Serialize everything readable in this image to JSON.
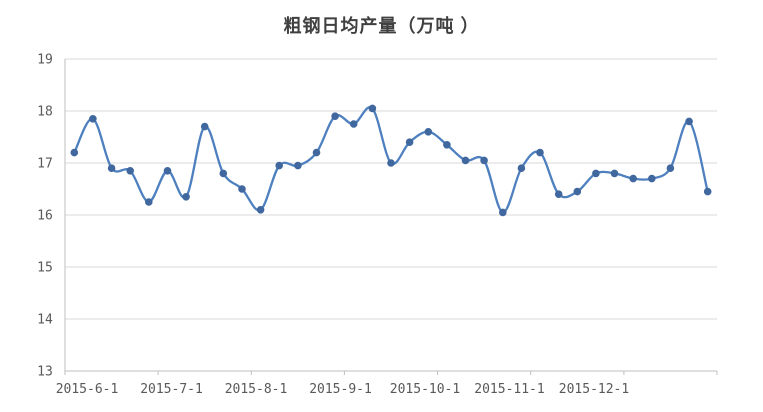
{
  "title": "粗钢日均产量（万吨 ）",
  "chart_data": {
    "type": "line",
    "title": "粗钢日均产量（万吨 ）",
    "subtitle": "",
    "xlabel": "",
    "ylabel": "",
    "ylim": [
      13,
      19
    ],
    "y_ticks": [
      13,
      14,
      15,
      16,
      17,
      18,
      19
    ],
    "x_tick_labels": [
      "2015-6-1",
      "2015-7-1",
      "2015-8-1",
      "2015-9-1",
      "2015-10-1",
      "2015-11-1",
      "2015-12-1"
    ],
    "grid": "horizontal-only",
    "legend_position": "none",
    "line_style": "smoothed-with-round-markers",
    "series": [
      {
        "name": "粗钢日均产量",
        "values": [
          17.2,
          17.85,
          16.9,
          16.85,
          16.25,
          16.85,
          16.35,
          17.7,
          16.8,
          16.5,
          16.1,
          16.95,
          16.95,
          17.2,
          17.9,
          17.75,
          18.05,
          17.0,
          17.4,
          17.6,
          17.35,
          17.05,
          17.05,
          16.05,
          16.9,
          17.2,
          16.4,
          16.45,
          16.8,
          16.8,
          16.7,
          16.7,
          16.9,
          17.8,
          16.45
        ]
      }
    ],
    "colors": {
      "line": "#4e80bf",
      "marker": "#40689f",
      "gridline": "#d9d9d9",
      "axis": "#bfbfbf",
      "tick_text": "#595959",
      "title_text": "#404040",
      "background": "#ffffff"
    }
  }
}
